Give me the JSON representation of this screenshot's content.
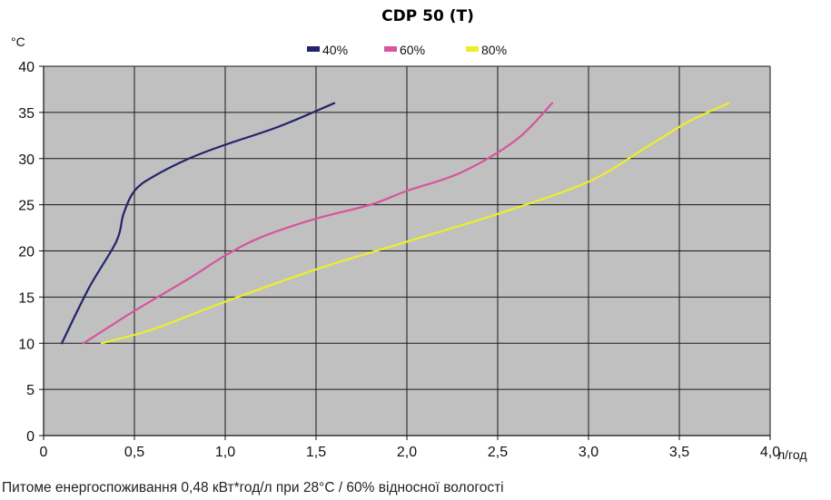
{
  "chart_data": {
    "type": "line",
    "title": "CDP 50 (T)",
    "xlabel": "л/год",
    "ylabel": "°C",
    "xlim": [
      0,
      4.0
    ],
    "ylim": [
      0,
      40
    ],
    "x_ticks": [
      "0",
      "0,5",
      "1,0",
      "1,5",
      "2,0",
      "2,5",
      "3,0",
      "3,5",
      "4,0"
    ],
    "y_ticks": [
      "0",
      "5",
      "10",
      "15",
      "20",
      "25",
      "30",
      "35",
      "40"
    ],
    "grid": true,
    "legend_position": "top",
    "plot_background": "#c0c0c0",
    "series": [
      {
        "name": "40%",
        "color": "#23236e",
        "points": [
          [
            0.1,
            10
          ],
          [
            0.25,
            16
          ],
          [
            0.4,
            21
          ],
          [
            0.44,
            24
          ],
          [
            0.5,
            26.5
          ],
          [
            0.6,
            28
          ],
          [
            0.8,
            30
          ],
          [
            1.0,
            31.5
          ],
          [
            1.3,
            33.5
          ],
          [
            1.6,
            36
          ]
        ]
      },
      {
        "name": "60%",
        "color": "#d6559d",
        "points": [
          [
            0.22,
            10
          ],
          [
            0.5,
            13.5
          ],
          [
            0.8,
            17
          ],
          [
            1.0,
            19.5
          ],
          [
            1.2,
            21.5
          ],
          [
            1.5,
            23.5
          ],
          [
            1.8,
            25
          ],
          [
            2.0,
            26.5
          ],
          [
            2.3,
            28.5
          ],
          [
            2.6,
            32
          ],
          [
            2.8,
            36
          ]
        ]
      },
      {
        "name": "80%",
        "color": "#eeee2a",
        "points": [
          [
            0.32,
            10
          ],
          [
            0.6,
            11.5
          ],
          [
            1.0,
            14.5
          ],
          [
            1.5,
            18
          ],
          [
            2.0,
            21
          ],
          [
            2.5,
            24
          ],
          [
            3.0,
            27.5
          ],
          [
            3.3,
            31
          ],
          [
            3.55,
            34
          ],
          [
            3.77,
            36
          ]
        ]
      }
    ]
  },
  "footnote": "Питоме енергоспоживання 0,48 кВт*год/л при 28°C / 60% відносної вологості"
}
